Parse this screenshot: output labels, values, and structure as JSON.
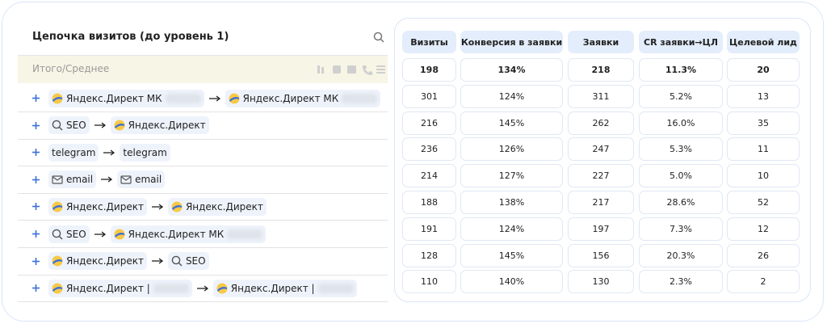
{
  "header": {
    "title": "Цепочка визитов (до уровень 1)"
  },
  "summary_label": "Итого/Среднее",
  "chains": [
    {
      "steps": [
        {
          "icon": "yandex",
          "label": "Яндекс.Директ МК",
          "blurred": true
        },
        {
          "icon": "yandex",
          "label": "Яндекс.Директ МК",
          "blurred": true
        }
      ]
    },
    {
      "steps": [
        {
          "icon": "search",
          "label": "SEO"
        },
        {
          "icon": "yandex",
          "label": "Яндекс.Директ"
        }
      ]
    },
    {
      "steps": [
        {
          "icon": "none",
          "label": "telegram"
        },
        {
          "icon": "none",
          "label": "telegram"
        }
      ]
    },
    {
      "steps": [
        {
          "icon": "mail",
          "label": "email"
        },
        {
          "icon": "mail",
          "label": "email"
        }
      ]
    },
    {
      "steps": [
        {
          "icon": "yandex",
          "label": "Яндекс.Директ"
        },
        {
          "icon": "yandex",
          "label": "Яндекс.Директ"
        }
      ]
    },
    {
      "steps": [
        {
          "icon": "search",
          "label": "SEO"
        },
        {
          "icon": "yandex",
          "label": "Яндекс.Директ МК",
          "blurred": true
        }
      ]
    },
    {
      "steps": [
        {
          "icon": "yandex",
          "label": "Яндекс.Директ"
        },
        {
          "icon": "search",
          "label": "SEO"
        }
      ]
    },
    {
      "steps": [
        {
          "icon": "yandex",
          "label": "Яндекс.Директ |",
          "blurred": true
        },
        {
          "icon": "yandex",
          "label": "Яндекс.Директ |",
          "blurred": true
        }
      ]
    }
  ],
  "table": {
    "columns": [
      "Визиты",
      "Конверсия в заявки",
      "Заявки",
      "CR заявки→ЦЛ",
      "Целевой лид"
    ],
    "totals": [
      "198",
      "134%",
      "218",
      "11.3%",
      "20"
    ],
    "rows": [
      [
        "301",
        "124%",
        "311",
        "5.2%",
        "13"
      ],
      [
        "216",
        "145%",
        "262",
        "16.0%",
        "35"
      ],
      [
        "236",
        "126%",
        "247",
        "5.3%",
        "11"
      ],
      [
        "214",
        "127%",
        "227",
        "5.0%",
        "10"
      ],
      [
        "188",
        "138%",
        "217",
        "28.6%",
        "52"
      ],
      [
        "191",
        "124%",
        "197",
        "7.3%",
        "12"
      ],
      [
        "128",
        "145%",
        "156",
        "20.3%",
        "26"
      ],
      [
        "110",
        "140%",
        "130",
        "2.3%",
        "2"
      ]
    ]
  }
}
